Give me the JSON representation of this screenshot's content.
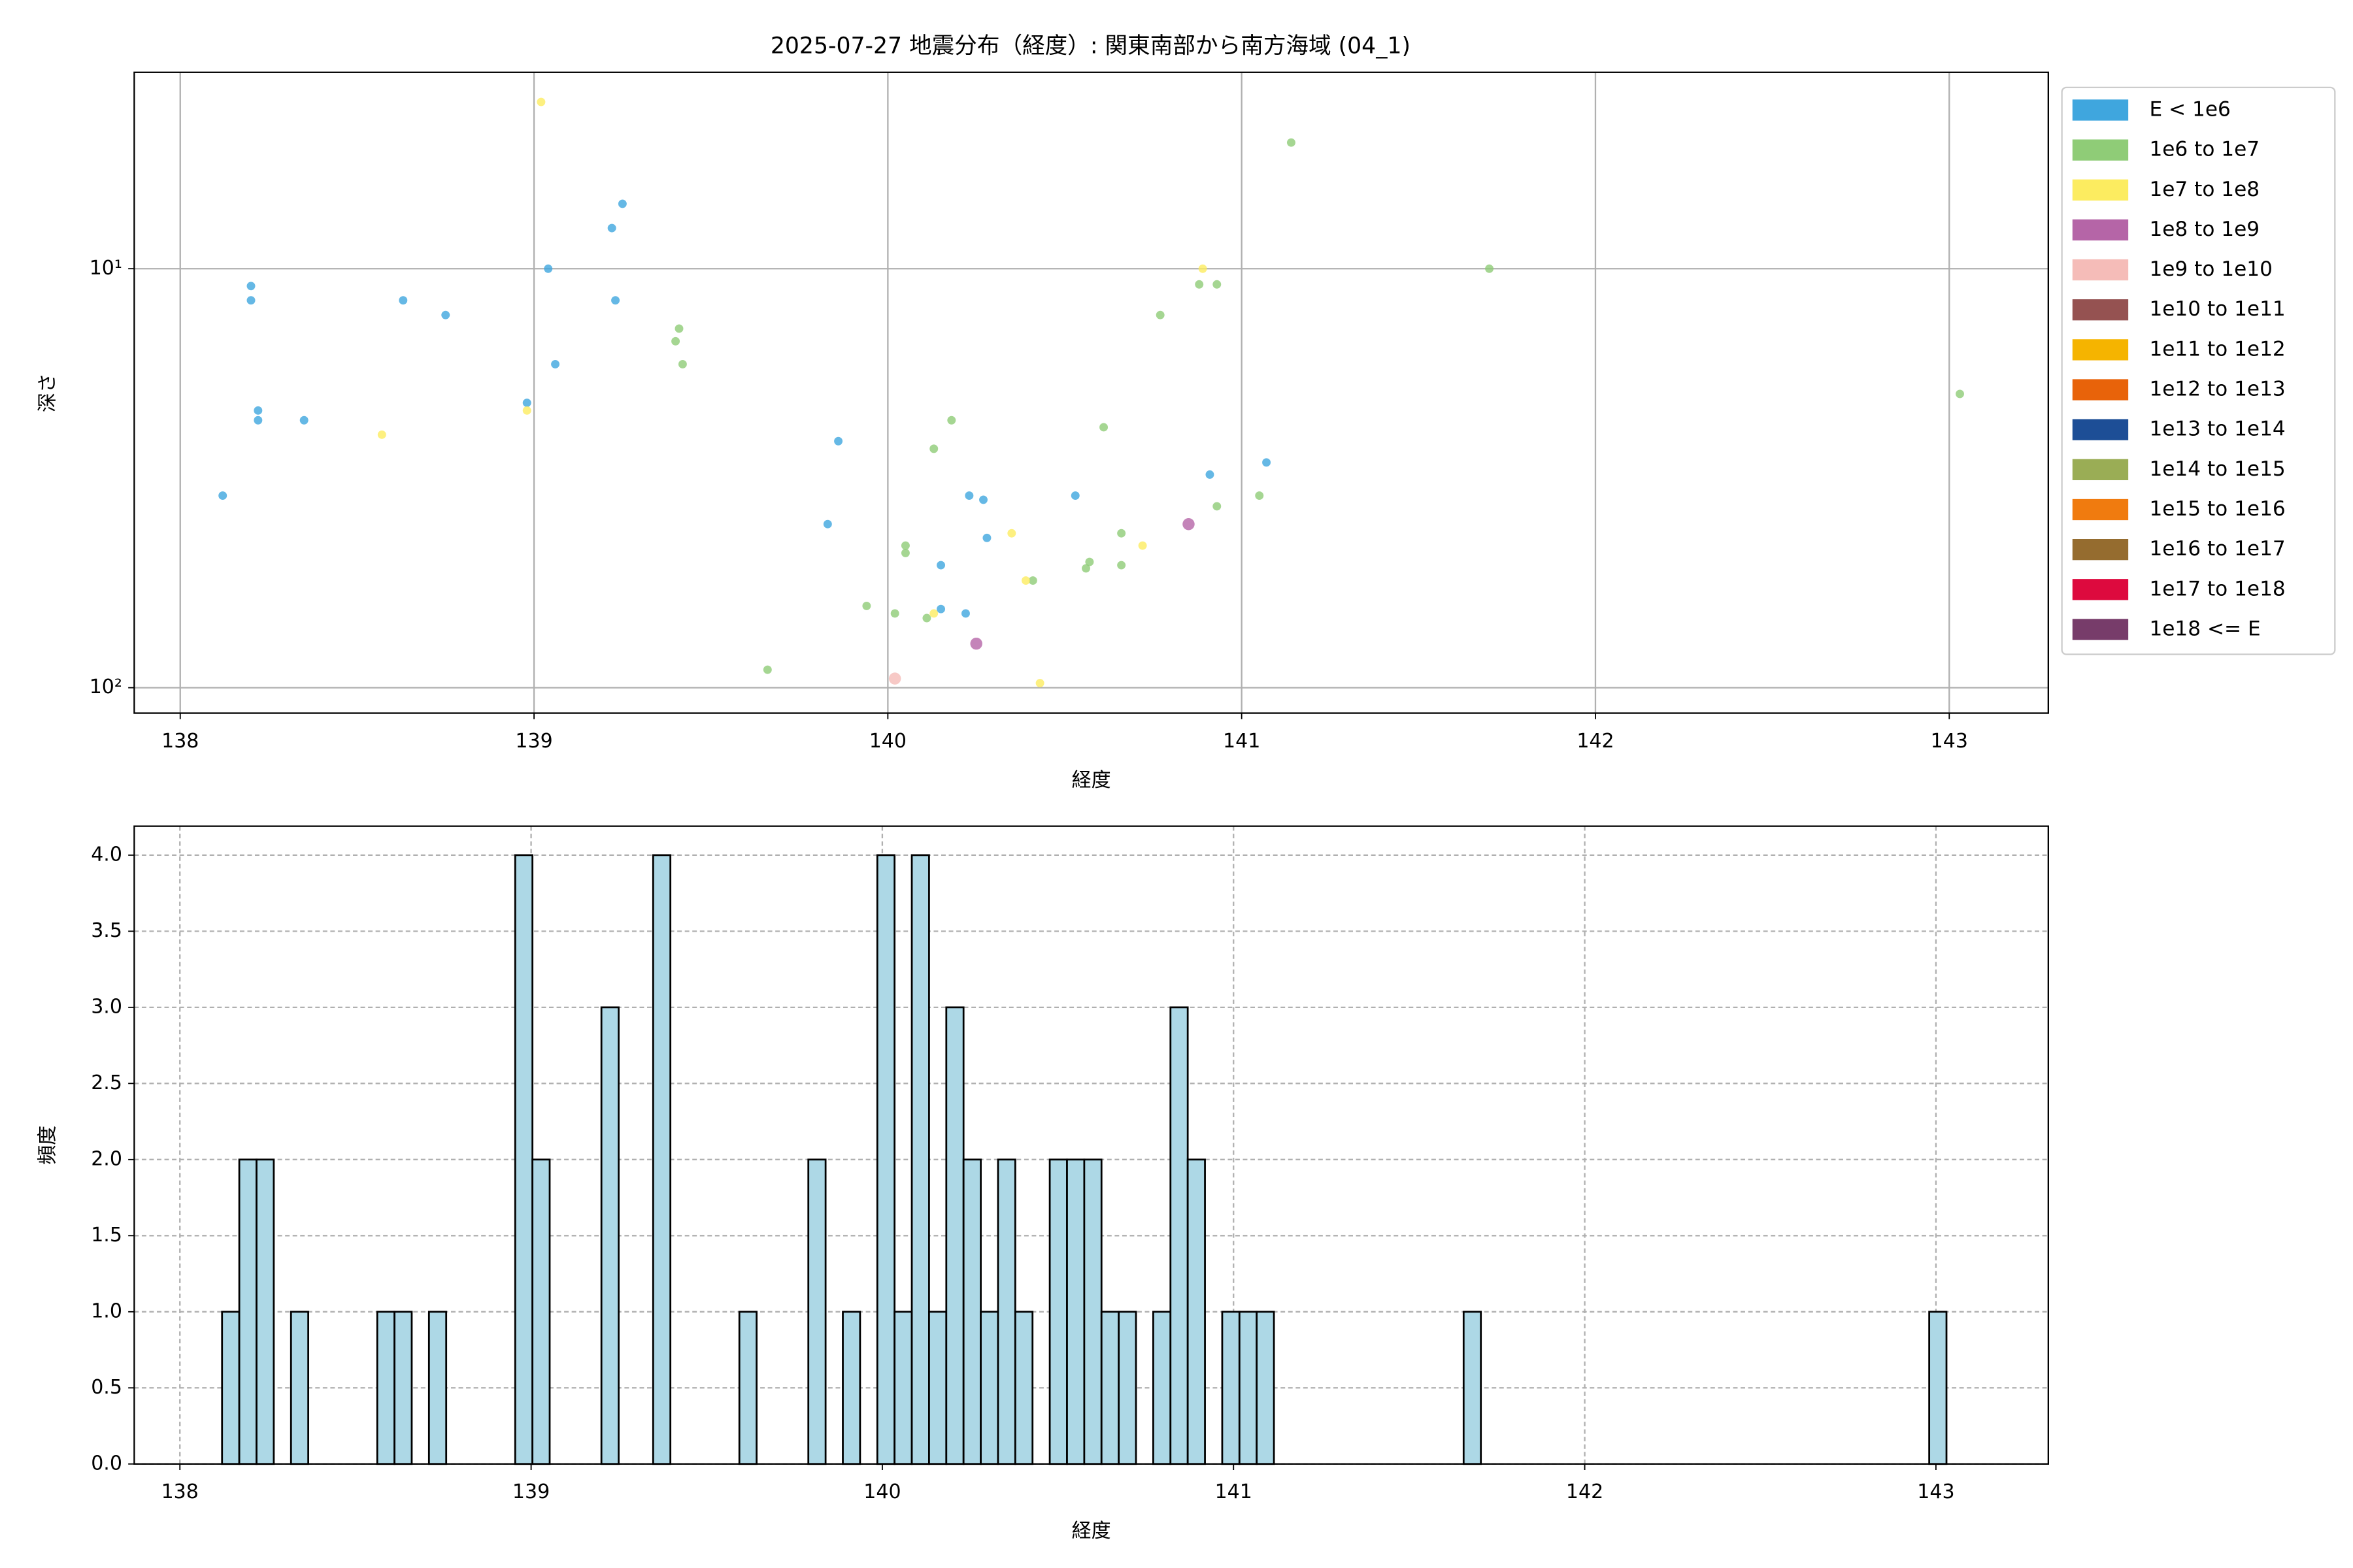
{
  "chart_data": [
    {
      "type": "scatter",
      "title": "2025-07-27 地震分布（経度）: 関東南部から南方海域 (04_1)",
      "xlabel": "経度",
      "ylabel": "深さ",
      "yscale": "log",
      "xlim": [
        137.87,
        143.28
      ],
      "ylim": [
        115,
        3.4
      ],
      "xticks": [
        138,
        139,
        140,
        141,
        142,
        143
      ],
      "yticks": [
        {
          "value": 10,
          "label": "10¹"
        },
        {
          "value": 100,
          "label": "10²"
        }
      ],
      "grid": true,
      "grid_linestyle": "solid",
      "legend_position": "outside right",
      "series": [
        {
          "name": "E < 1e6",
          "color": "#3fa6de",
          "x": [
            138.12,
            138.2,
            138.2,
            138.22,
            138.22,
            138.35,
            138.63,
            138.75,
            138.98,
            139.04,
            139.06,
            139.22,
            139.23,
            139.25,
            139.83,
            139.86,
            140.15,
            140.15,
            140.22,
            140.23,
            140.27,
            140.28,
            140.53,
            140.91,
            141.07
          ],
          "values": [
            34.8,
            11.0,
            11.9,
            21.8,
            23.0,
            23.0,
            11.9,
            12.9,
            20.9,
            10.0,
            16.9,
            8.0,
            11.9,
            7.0,
            40.7,
            25.8,
            64.9,
            51.0,
            66.5,
            34.8,
            35.6,
            43.9,
            34.8,
            31.0,
            29.0
          ]
        },
        {
          "name": "1e6 to 1e7",
          "color": "#8fcc77",
          "x": [
            139.4,
            139.41,
            139.42,
            139.66,
            139.94,
            140.02,
            140.05,
            140.05,
            140.11,
            140.13,
            140.18,
            140.41,
            140.56,
            140.57,
            140.61,
            140.66,
            140.66,
            140.77,
            140.88,
            140.93,
            140.93,
            141.05,
            141.14,
            141.7,
            143.03
          ],
          "values": [
            14.9,
            13.9,
            16.9,
            90.6,
            63.8,
            66.5,
            45.8,
            47.7,
            68.2,
            26.9,
            23.0,
            55.5,
            51.9,
            50.1,
            23.9,
            51.0,
            42.8,
            12.9,
            10.9,
            10.9,
            36.9,
            34.8,
            5.0,
            10.0,
            19.9
          ]
        },
        {
          "name": "1e7 to 1e8",
          "color": "#fcec60",
          "x": [
            138.57,
            138.98,
            139.02,
            140.13,
            140.35,
            140.39,
            140.43,
            140.72,
            140.89
          ],
          "values": [
            24.9,
            21.8,
            4.0,
            66.5,
            42.8,
            55.5,
            97.5,
            45.8,
            10.0
          ]
        },
        {
          "name": "1e8 to 1e9",
          "color": "#b565a7",
          "x": [
            140.25,
            140.85
          ],
          "values": [
            78.5,
            40.7
          ]
        },
        {
          "name": "1e9 to 1e10",
          "color": "#f5bcb8",
          "x": [
            140.02
          ],
          "values": [
            95.1
          ]
        },
        {
          "name": "1e10 to 1e11",
          "color": "#955251",
          "x": [],
          "values": []
        },
        {
          "name": "1e11 to 1e12",
          "color": "#f5b400",
          "x": [],
          "values": []
        },
        {
          "name": "1e12 to 1e13",
          "color": "#e8630a",
          "x": [],
          "values": []
        },
        {
          "name": "1e13 to 1e14",
          "color": "#1d4e96",
          "x": [],
          "values": []
        },
        {
          "name": "1e14 to 1e15",
          "color": "#9aad55",
          "x": [],
          "values": []
        },
        {
          "name": "1e15 to 1e16",
          "color": "#f07b0f",
          "x": [],
          "values": []
        },
        {
          "name": "1e16 to 1e17",
          "color": "#956c2f",
          "x": [],
          "values": []
        },
        {
          "name": "1e17 to 1e18",
          "color": "#dd0a3e",
          "x": [],
          "values": []
        },
        {
          "name": "1e18 <= E",
          "color": "#773c6a",
          "x": [],
          "values": []
        }
      ]
    },
    {
      "type": "histogram",
      "xlabel": "経度",
      "ylabel": "頻度",
      "color": "#add8e6",
      "edgecolor": "#000000",
      "xlim": [
        137.87,
        143.32
      ],
      "ylim": [
        0,
        4.19
      ],
      "xticks": [
        138,
        139,
        140,
        141,
        142,
        143
      ],
      "yticks": [
        {
          "value": 0,
          "label": "0.0"
        },
        0.5,
        {
          "value": 1,
          "label": "1.0"
        },
        1.5,
        {
          "value": 2,
          "label": "2.0"
        },
        2.5,
        {
          "value": 3,
          "label": "3.0"
        },
        3.5,
        {
          "value": 4,
          "label": "4.0"
        }
      ],
      "grid": true,
      "grid_linestyle": "dashed",
      "bins": [
        138.12,
        138.1691,
        138.2182,
        138.2673,
        138.3164,
        138.3655,
        138.4146,
        138.4637,
        138.5128,
        138.5619,
        138.611,
        138.6601,
        138.7092,
        138.7583,
        138.8074,
        138.8565,
        138.9056,
        138.9547,
        139.0038,
        139.0529,
        139.102,
        139.1511,
        139.2002,
        139.2493,
        139.2984,
        139.3475,
        139.3966,
        139.4457,
        139.4948,
        139.5439,
        139.593,
        139.6421,
        139.6912,
        139.7403,
        139.7894,
        139.8385,
        139.8876,
        139.9367,
        139.9858,
        140.0349,
        140.084,
        140.1331,
        140.1822,
        140.2313,
        140.2804,
        140.3295,
        140.3786,
        140.4277,
        140.4768,
        140.5259,
        140.575,
        140.6241,
        140.6732,
        140.7223,
        140.7714,
        140.8205,
        140.8696,
        140.9187,
        140.9678,
        141.0169,
        141.066,
        141.1151,
        141.1642,
        141.2133,
        141.2624,
        141.3115,
        141.3606,
        141.4097,
        141.4588,
        141.5079,
        141.557,
        141.6061,
        141.6552,
        141.7043,
        141.7534,
        141.8025,
        141.8516,
        141.9007,
        141.9498,
        141.9989,
        142.048,
        142.0971,
        142.1462,
        142.1953,
        142.2444,
        142.2935,
        142.3426,
        142.3917,
        142.4408,
        142.4899,
        142.539,
        142.5881,
        142.6372,
        142.6863,
        142.7354,
        142.7845,
        142.8336,
        142.8827,
        142.9318,
        142.9809,
        143.03
      ],
      "values": [
        1,
        2,
        2,
        0,
        1,
        0,
        0,
        0,
        0,
        1,
        1,
        0,
        1,
        0,
        0,
        0,
        0,
        4,
        2,
        0,
        0,
        0,
        3,
        0,
        0,
        4,
        0,
        0,
        0,
        0,
        1,
        0,
        0,
        0,
        2,
        0,
        1,
        0,
        4,
        1,
        4,
        1,
        3,
        2,
        1,
        2,
        1,
        0,
        2,
        2,
        2,
        1,
        1,
        0,
        1,
        3,
        2,
        0,
        1,
        1,
        1,
        0,
        0,
        0,
        0,
        0,
        0,
        0,
        0,
        0,
        0,
        0,
        1,
        0,
        0,
        0,
        0,
        0,
        0,
        0,
        0,
        0,
        0,
        0,
        0,
        0,
        0,
        0,
        0,
        0,
        0,
        0,
        0,
        0,
        0,
        0,
        0,
        0,
        0,
        1
      ]
    }
  ]
}
